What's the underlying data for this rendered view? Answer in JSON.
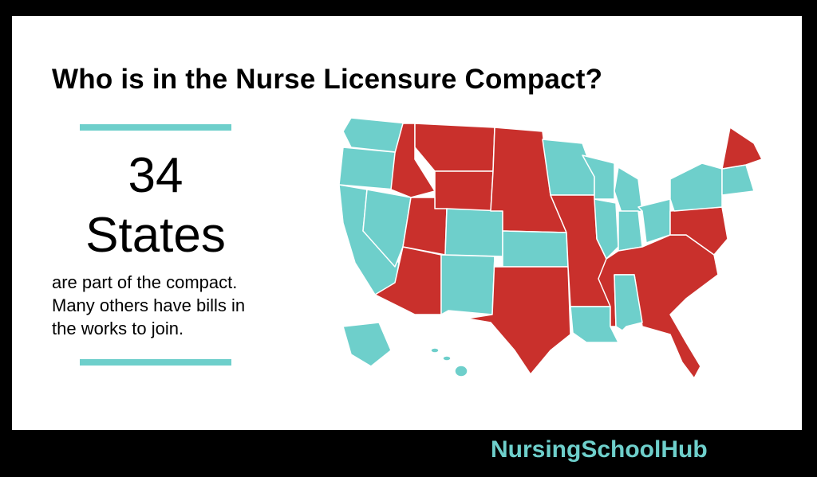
{
  "header": {
    "title": "Who is in the Nurse Licensure Compact?"
  },
  "summary": {
    "count": "34",
    "unit": "States",
    "description": [
      "are part of the compact.",
      "Many others have bills in",
      "the works to join."
    ]
  },
  "footer": {
    "brand": "NursingSchoolHub"
  }
}
